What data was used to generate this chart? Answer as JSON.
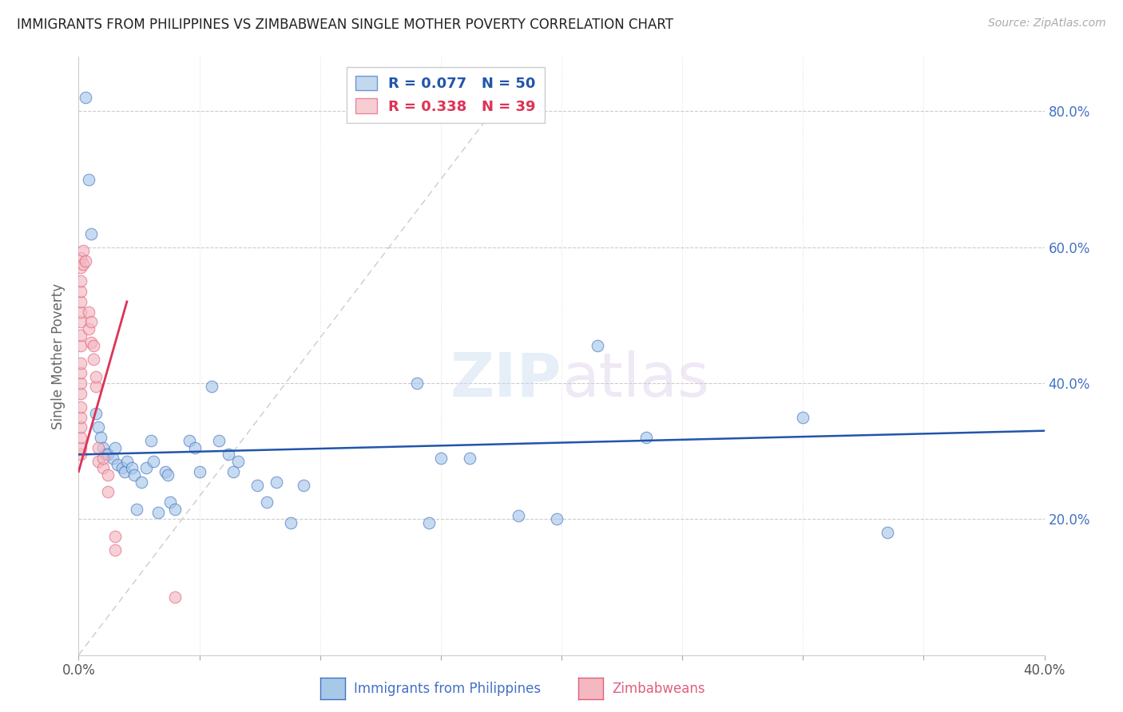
{
  "title": "IMMIGRANTS FROM PHILIPPINES VS ZIMBABWEAN SINGLE MOTHER POVERTY CORRELATION CHART",
  "source": "Source: ZipAtlas.com",
  "ylabel": "Single Mother Poverty",
  "xlabel_blue": "Immigrants from Philippines",
  "xlabel_pink": "Zimbabweans",
  "x_min": 0.0,
  "x_max": 0.4,
  "y_min": 0.0,
  "y_max": 0.88,
  "y_ticks": [
    0.2,
    0.4,
    0.6,
    0.8
  ],
  "y_tick_labels": [
    "20.0%",
    "40.0%",
    "60.0%",
    "80.0%"
  ],
  "x_ticks": [
    0.0,
    0.05,
    0.1,
    0.15,
    0.2,
    0.25,
    0.3,
    0.35,
    0.4
  ],
  "x_tick_labels": [
    "0.0%",
    "",
    "",
    "",
    "",
    "",
    "",
    "",
    "40.0%"
  ],
  "r_blue": 0.077,
  "n_blue": 50,
  "r_pink": 0.338,
  "n_pink": 39,
  "blue_color": "#a8c8e8",
  "pink_color": "#f4b8c0",
  "blue_edge_color": "#4472c4",
  "pink_edge_color": "#e06080",
  "blue_line_color": "#2255aa",
  "pink_line_color": "#dd3355",
  "ref_line_color": "#cccccc",
  "title_color": "#222222",
  "source_color": "#aaaaaa",
  "axis_color": "#cccccc",
  "tick_color_right": "#4472c4",
  "watermark_color": "#ddeeff",
  "blue_points": [
    [
      0.003,
      0.82
    ],
    [
      0.004,
      0.7
    ],
    [
      0.005,
      0.62
    ],
    [
      0.007,
      0.355
    ],
    [
      0.008,
      0.335
    ],
    [
      0.009,
      0.32
    ],
    [
      0.01,
      0.305
    ],
    [
      0.011,
      0.295
    ],
    [
      0.012,
      0.295
    ],
    [
      0.014,
      0.29
    ],
    [
      0.015,
      0.305
    ],
    [
      0.016,
      0.28
    ],
    [
      0.018,
      0.275
    ],
    [
      0.019,
      0.27
    ],
    [
      0.02,
      0.285
    ],
    [
      0.022,
      0.275
    ],
    [
      0.023,
      0.265
    ],
    [
      0.024,
      0.215
    ],
    [
      0.026,
      0.255
    ],
    [
      0.028,
      0.275
    ],
    [
      0.03,
      0.315
    ],
    [
      0.031,
      0.285
    ],
    [
      0.033,
      0.21
    ],
    [
      0.036,
      0.27
    ],
    [
      0.037,
      0.265
    ],
    [
      0.038,
      0.225
    ],
    [
      0.04,
      0.215
    ],
    [
      0.046,
      0.315
    ],
    [
      0.048,
      0.305
    ],
    [
      0.05,
      0.27
    ],
    [
      0.055,
      0.395
    ],
    [
      0.058,
      0.315
    ],
    [
      0.062,
      0.295
    ],
    [
      0.064,
      0.27
    ],
    [
      0.066,
      0.285
    ],
    [
      0.074,
      0.25
    ],
    [
      0.078,
      0.225
    ],
    [
      0.082,
      0.255
    ],
    [
      0.088,
      0.195
    ],
    [
      0.093,
      0.25
    ],
    [
      0.14,
      0.4
    ],
    [
      0.145,
      0.195
    ],
    [
      0.15,
      0.29
    ],
    [
      0.162,
      0.29
    ],
    [
      0.182,
      0.205
    ],
    [
      0.198,
      0.2
    ],
    [
      0.215,
      0.455
    ],
    [
      0.235,
      0.32
    ],
    [
      0.3,
      0.35
    ],
    [
      0.335,
      0.18
    ]
  ],
  "pink_points": [
    [
      0.001,
      0.295
    ],
    [
      0.001,
      0.305
    ],
    [
      0.001,
      0.32
    ],
    [
      0.001,
      0.335
    ],
    [
      0.001,
      0.35
    ],
    [
      0.001,
      0.365
    ],
    [
      0.001,
      0.385
    ],
    [
      0.001,
      0.4
    ],
    [
      0.001,
      0.415
    ],
    [
      0.001,
      0.43
    ],
    [
      0.001,
      0.455
    ],
    [
      0.001,
      0.47
    ],
    [
      0.001,
      0.49
    ],
    [
      0.001,
      0.505
    ],
    [
      0.001,
      0.52
    ],
    [
      0.001,
      0.535
    ],
    [
      0.001,
      0.55
    ],
    [
      0.001,
      0.57
    ],
    [
      0.001,
      0.585
    ],
    [
      0.002,
      0.575
    ],
    [
      0.002,
      0.595
    ],
    [
      0.003,
      0.58
    ],
    [
      0.004,
      0.48
    ],
    [
      0.004,
      0.505
    ],
    [
      0.005,
      0.46
    ],
    [
      0.005,
      0.49
    ],
    [
      0.006,
      0.435
    ],
    [
      0.006,
      0.455
    ],
    [
      0.007,
      0.395
    ],
    [
      0.007,
      0.41
    ],
    [
      0.008,
      0.285
    ],
    [
      0.008,
      0.305
    ],
    [
      0.01,
      0.275
    ],
    [
      0.01,
      0.29
    ],
    [
      0.012,
      0.24
    ],
    [
      0.012,
      0.265
    ],
    [
      0.015,
      0.155
    ],
    [
      0.015,
      0.175
    ],
    [
      0.04,
      0.085
    ]
  ]
}
